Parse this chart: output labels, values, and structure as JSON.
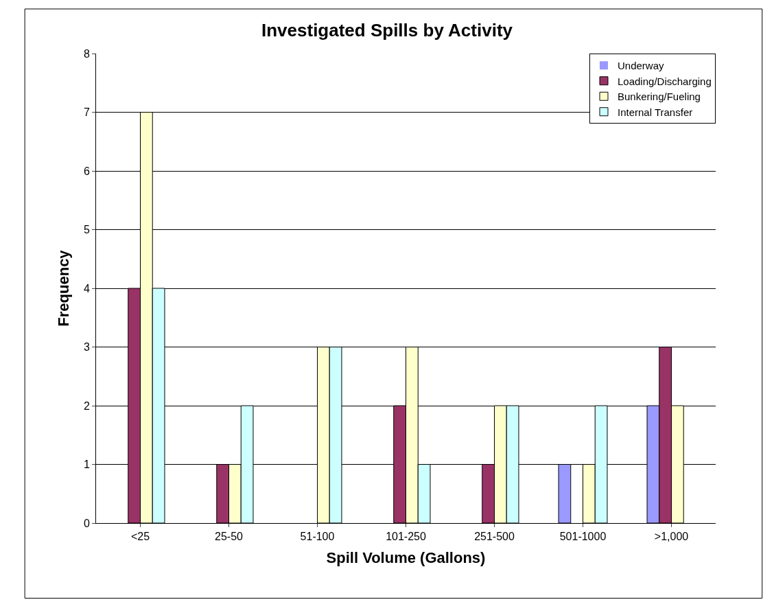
{
  "chart_data": {
    "type": "bar",
    "title": "Investigated Spills by Activity",
    "xlabel": "Spill Volume (Gallons)",
    "ylabel": "Frequency",
    "categories": [
      "<25",
      "25-50",
      "51-100",
      "101-250",
      "251-500",
      "501-1000",
      ">1,000"
    ],
    "series": [
      {
        "name": "Underway",
        "color": "#9999ff",
        "values": [
          0,
          0,
          0,
          0,
          0,
          1,
          2
        ]
      },
      {
        "name": "Loading/Discharging",
        "color": "#993366",
        "values": [
          4,
          1,
          0,
          2,
          1,
          0,
          3
        ]
      },
      {
        "name": "Bunkering/Fueling",
        "color": "#ffffcc",
        "values": [
          7,
          1,
          3,
          3,
          2,
          1,
          2
        ]
      },
      {
        "name": "Internal Transfer",
        "color": "#ccffff",
        "values": [
          4,
          2,
          3,
          1,
          2,
          2,
          0
        ]
      }
    ],
    "ylim": [
      0,
      8
    ],
    "yticks": [
      0,
      1,
      2,
      3,
      4,
      5,
      6,
      7,
      8
    ],
    "grid": "y",
    "legend": "top right"
  }
}
